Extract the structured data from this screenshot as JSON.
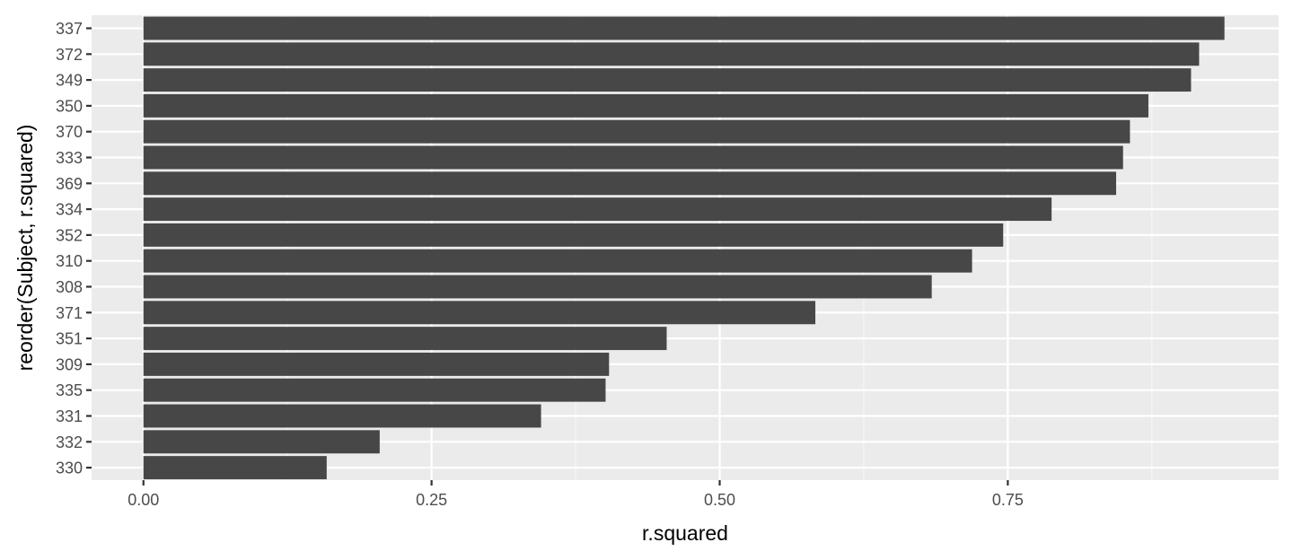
{
  "chart_data": {
    "type": "bar",
    "orientation": "horizontal",
    "xlabel": "r.squared",
    "ylabel": "reorder(Subject, r.squared)",
    "xlim": [
      -0.045,
      0.985
    ],
    "x_ticks": [
      "0.00",
      "0.25",
      "0.50",
      "0.75"
    ],
    "x_tick_values": [
      0,
      0.25,
      0.5,
      0.75
    ],
    "grid": true,
    "legend": "none",
    "categories": [
      "337",
      "372",
      "349",
      "350",
      "370",
      "333",
      "369",
      "334",
      "352",
      "310",
      "308",
      "371",
      "351",
      "309",
      "335",
      "331",
      "332",
      "330"
    ],
    "values": [
      0.938,
      0.916,
      0.909,
      0.872,
      0.856,
      0.85,
      0.844,
      0.788,
      0.746,
      0.719,
      0.684,
      0.583,
      0.454,
      0.404,
      0.401,
      0.345,
      0.205,
      0.159
    ],
    "colors": {
      "bar": "#474747",
      "panel": "#ebebeb",
      "grid_major": "#ffffff",
      "grid_minor": "#f6f6f6",
      "tick_text": "#4d4d4d",
      "tick_mark": "#333333",
      "title_text": "#000000"
    }
  }
}
